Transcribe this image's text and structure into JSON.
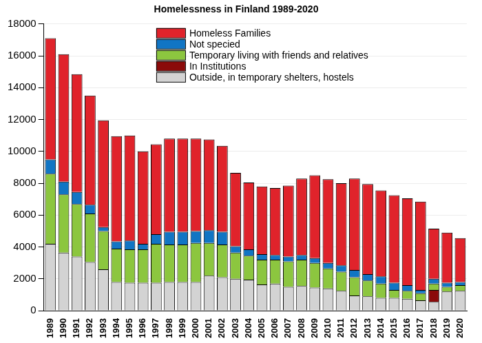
{
  "chart_data": {
    "type": "bar",
    "title": "Homelessness in Finland 1989-2020",
    "stacked": true,
    "grid": true,
    "legend": "top",
    "categories": [
      "1989",
      "1990",
      "1991",
      "1992",
      "1993",
      "1994",
      "1995",
      "1996",
      "1997",
      "1998",
      "1999",
      "2000",
      "2001",
      "2002",
      "2003",
      "2004",
      "2005",
      "2006",
      "2007",
      "2008",
      "2009",
      "2010",
      "2011",
      "2012",
      "2013",
      "2014",
      "2015",
      "2016",
      "2017",
      "2018",
      "2019",
      "2020"
    ],
    "ylim": [
      0,
      18000
    ],
    "yticks": [
      0,
      2000,
      4000,
      6000,
      8000,
      10000,
      12000,
      14000,
      16000,
      18000
    ],
    "series": [
      {
        "name": "Homeless Families",
        "color": "#e0232b",
        "values": [
          7600,
          8000,
          7400,
          6850,
          6700,
          6600,
          6600,
          5800,
          5650,
          5850,
          5850,
          5800,
          5700,
          5400,
          4600,
          4200,
          4250,
          4200,
          4450,
          4800,
          5200,
          5250,
          5150,
          5750,
          5650,
          5400,
          5500,
          5450,
          5550,
          3150,
          3150,
          2750
        ]
      },
      {
        "name": "Not specied",
        "color": "#1175c4",
        "values": [
          900,
          800,
          750,
          550,
          250,
          450,
          550,
          350,
          600,
          800,
          800,
          750,
          800,
          800,
          400,
          400,
          350,
          300,
          300,
          300,
          300,
          350,
          400,
          450,
          400,
          450,
          450,
          350,
          200,
          300,
          250,
          200
        ]
      },
      {
        "name": "Temporary living with friends and relatives",
        "color": "#8cc63f",
        "values": [
          4400,
          3650,
          3300,
          3050,
          2400,
          2100,
          2100,
          2100,
          2450,
          2350,
          2350,
          2450,
          2050,
          2050,
          1650,
          1500,
          1550,
          1500,
          1600,
          1650,
          1550,
          1250,
          1200,
          1150,
          1000,
          900,
          500,
          500,
          450,
          400,
          300,
          350
        ]
      },
      {
        "name": "In Institutions",
        "color": "#8b0a0a",
        "values": [
          0,
          0,
          0,
          0,
          0,
          0,
          0,
          0,
          0,
          0,
          0,
          0,
          0,
          0,
          0,
          0,
          0,
          0,
          0,
          0,
          0,
          0,
          0,
          0,
          0,
          0,
          0,
          0,
          0,
          750,
          0,
          0
        ]
      },
      {
        "name": "Outside, in temporary shelters, hostels",
        "color": "#d3d3d3",
        "values": [
          4200,
          3650,
          3400,
          3050,
          2600,
          1800,
          1750,
          1750,
          1750,
          1800,
          1800,
          1800,
          2200,
          2100,
          2000,
          1950,
          1650,
          1700,
          1500,
          1550,
          1450,
          1400,
          1250,
          950,
          900,
          800,
          800,
          750,
          650,
          550,
          1200,
          1250
        ]
      }
    ]
  }
}
